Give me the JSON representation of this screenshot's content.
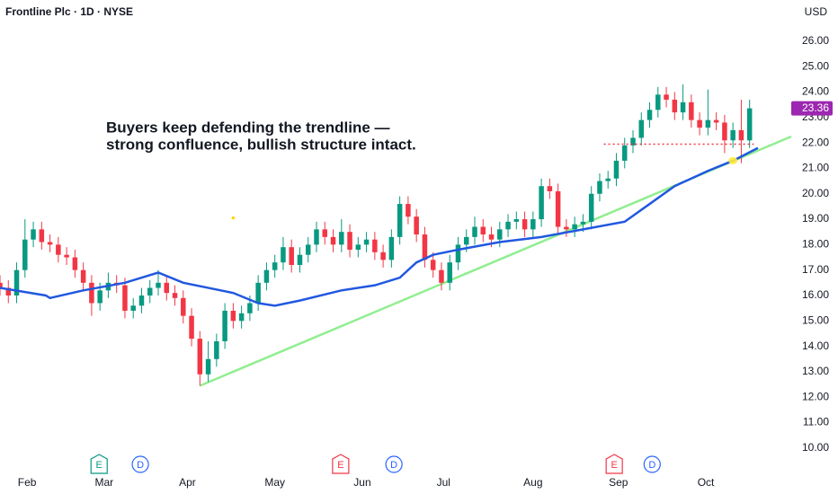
{
  "header": {
    "title": "Frontline Plc · 1D · NYSE",
    "currency": "USD"
  },
  "chart_data": {
    "type": "candlestick",
    "x": [
      0,
      2,
      4,
      6,
      8,
      10,
      12,
      14,
      16,
      18,
      20,
      22,
      24,
      26,
      28,
      30,
      32,
      34,
      36,
      38,
      40,
      42,
      44,
      46,
      48,
      50,
      52,
      54,
      56,
      58,
      60,
      62,
      64,
      66,
      68,
      70,
      72,
      74,
      76,
      78,
      80,
      82,
      84,
      86,
      88,
      90,
      92,
      94,
      96,
      98,
      100,
      102,
      104,
      106,
      108,
      110,
      112,
      114,
      116,
      118,
      120,
      122,
      124,
      126,
      128,
      130,
      132,
      134,
      136,
      138,
      140,
      142,
      144,
      146,
      148,
      150,
      152,
      154,
      156,
      158,
      160,
      162,
      164,
      166,
      168,
      170,
      172,
      174,
      176,
      178,
      180
    ],
    "open": [
      16.5,
      16.3,
      16.0,
      17.0,
      18.2,
      18.6,
      18.1,
      18.0,
      17.6,
      17.5,
      17.0,
      16.5,
      15.7,
      16.2,
      16.5,
      16.4,
      15.4,
      15.6,
      16.0,
      16.3,
      16.5,
      16.1,
      15.9,
      15.2,
      14.3,
      12.9,
      13.5,
      14.2,
      15.4,
      15.0,
      15.3,
      15.7,
      16.5,
      17.0,
      17.3,
      17.9,
      17.2,
      17.6,
      18.0,
      18.6,
      18.3,
      18.0,
      18.5,
      17.8,
      18.0,
      18.2,
      17.7,
      17.4,
      18.3,
      19.6,
      19.1,
      18.4,
      17.4,
      17.0,
      16.5,
      17.3,
      18.0,
      18.3,
      18.7,
      18.4,
      18.2,
      18.6,
      18.9,
      19.0,
      18.6,
      19.0,
      20.3,
      20.1,
      18.7,
      18.6,
      18.8,
      18.9,
      20.0,
      20.5,
      20.6,
      21.3,
      21.9,
      22.2,
      22.9,
      23.3,
      23.9,
      23.7,
      23.2,
      23.6,
      22.9,
      22.6,
      22.9,
      22.8,
      22.1,
      22.5,
      22.1
    ],
    "high": [
      16.8,
      16.6,
      17.3,
      19.0,
      18.9,
      18.9,
      18.4,
      18.3,
      17.9,
      17.8,
      17.3,
      16.8,
      16.5,
      16.9,
      16.8,
      16.7,
      15.9,
      16.3,
      16.6,
      17.0,
      16.8,
      16.4,
      16.2,
      15.5,
      14.6,
      14.2,
      14.5,
      15.7,
      15.7,
      15.6,
      16.0,
      16.8,
      17.3,
      17.6,
      18.3,
      18.2,
      17.9,
      18.3,
      18.9,
      18.9,
      18.6,
      19.0,
      18.8,
      18.3,
      18.5,
      18.5,
      18.0,
      18.6,
      19.9,
      19.9,
      19.4,
      18.7,
      17.7,
      17.3,
      17.6,
      18.3,
      18.6,
      19.1,
      19.0,
      18.7,
      18.9,
      19.2,
      19.3,
      19.3,
      19.3,
      20.6,
      20.6,
      20.4,
      19.0,
      19.1,
      19.2,
      20.3,
      20.8,
      20.9,
      21.6,
      22.2,
      22.5,
      23.2,
      23.6,
      24.2,
      24.2,
      24.0,
      24.3,
      23.9,
      23.2,
      24.1,
      23.2,
      23.1,
      22.8,
      23.7,
      23.7
    ],
    "low": [
      16.0,
      15.7,
      15.7,
      16.7,
      17.9,
      17.8,
      17.7,
      17.3,
      17.2,
      16.7,
      16.2,
      15.2,
      15.4,
      15.9,
      16.1,
      15.1,
      15.1,
      15.3,
      15.7,
      16.0,
      15.8,
      15.6,
      14.9,
      14.0,
      12.45,
      12.6,
      13.2,
      13.9,
      14.7,
      14.7,
      15.0,
      15.4,
      16.2,
      16.7,
      17.0,
      16.9,
      16.9,
      17.3,
      17.7,
      18.0,
      17.7,
      17.7,
      17.5,
      17.5,
      17.7,
      17.4,
      17.1,
      17.1,
      18.0,
      18.8,
      18.1,
      17.1,
      16.7,
      16.2,
      16.2,
      17.0,
      17.7,
      18.0,
      18.1,
      17.9,
      17.9,
      18.3,
      18.6,
      18.3,
      18.3,
      18.7,
      19.8,
      18.4,
      18.3,
      18.3,
      18.5,
      18.6,
      19.7,
      20.2,
      20.3,
      21.0,
      21.6,
      21.9,
      22.6,
      23.0,
      23.4,
      22.9,
      22.9,
      22.6,
      22.3,
      22.3,
      22.5,
      21.6,
      21.8,
      21.2,
      21.8
    ],
    "close": [
      16.3,
      16.0,
      17.0,
      18.2,
      18.6,
      18.1,
      18.0,
      17.6,
      17.5,
      17.0,
      16.5,
      15.7,
      16.2,
      16.5,
      16.4,
      15.4,
      15.6,
      16.0,
      16.3,
      16.5,
      16.1,
      15.9,
      15.2,
      14.3,
      12.9,
      13.5,
      14.2,
      15.4,
      15.0,
      15.3,
      15.7,
      16.5,
      17.0,
      17.3,
      17.9,
      17.2,
      17.6,
      18.0,
      18.6,
      18.3,
      18.0,
      18.5,
      17.8,
      18.0,
      18.2,
      17.7,
      17.4,
      18.3,
      19.6,
      19.1,
      18.4,
      17.4,
      17.0,
      16.5,
      17.3,
      18.0,
      18.3,
      18.7,
      18.4,
      18.2,
      18.6,
      18.9,
      19.0,
      18.6,
      19.0,
      20.3,
      20.1,
      18.7,
      18.6,
      18.8,
      18.9,
      20.0,
      20.5,
      20.6,
      21.3,
      21.9,
      22.2,
      22.9,
      23.3,
      23.9,
      23.7,
      23.2,
      23.6,
      22.9,
      22.6,
      22.9,
      22.8,
      22.1,
      22.5,
      22.1,
      23.36
    ],
    "up_color": "#089981",
    "down_color": "#f23645",
    "price_label_color": "#9c27b0",
    "xlim": [
      0,
      190
    ],
    "xticks": [
      {
        "value": 6.5,
        "label": "Feb"
      },
      {
        "value": 25,
        "label": "Mar"
      },
      {
        "value": 45,
        "label": "Apr"
      },
      {
        "value": 66,
        "label": "May"
      },
      {
        "value": 87,
        "label": "Jun"
      },
      {
        "value": 106.5,
        "label": "Jul"
      },
      {
        "value": 128,
        "label": "Aug"
      },
      {
        "value": 148.5,
        "label": "Sep"
      },
      {
        "value": 169.5,
        "label": "Oct"
      }
    ],
    "ylim": [
      8.9,
      27.62
    ],
    "yticks": [
      {
        "value": 10,
        "label": "10.00"
      },
      {
        "value": 11,
        "label": "11.00"
      },
      {
        "value": 12,
        "label": "12.00"
      },
      {
        "value": 13,
        "label": "13.00"
      },
      {
        "value": 14,
        "label": "14.00"
      },
      {
        "value": 15,
        "label": "15.00"
      },
      {
        "value": 16,
        "label": "16.00"
      },
      {
        "value": 17,
        "label": "17.00"
      },
      {
        "value": 18,
        "label": "18.00"
      },
      {
        "value": 19,
        "label": "19.00"
      },
      {
        "value": 20,
        "label": "20.00"
      },
      {
        "value": 21,
        "label": "21.00"
      },
      {
        "value": 22,
        "label": "22.00"
      },
      {
        "value": 23,
        "label": "23.00"
      },
      {
        "value": 24,
        "label": "24.00"
      },
      {
        "value": 25,
        "label": "25.00"
      },
      {
        "value": 26,
        "label": "26.00"
      }
    ],
    "grid": false,
    "moving_average": {
      "color": "#2158e0",
      "x": [
        0,
        11,
        12,
        20,
        30,
        36,
        38,
        44,
        56,
        62,
        66,
        72,
        82,
        90,
        96,
        100,
        104,
        110,
        120,
        130,
        140,
        150,
        156,
        162,
        170,
        176,
        182
      ],
      "values": [
        16.3,
        16.0,
        15.9,
        16.2,
        16.5,
        16.8,
        16.9,
        16.5,
        16.1,
        15.7,
        15.6,
        15.8,
        16.2,
        16.4,
        16.7,
        17.3,
        17.6,
        17.8,
        18.1,
        18.3,
        18.6,
        18.9,
        19.6,
        20.3,
        20.9,
        21.3,
        21.8
      ]
    },
    "trendline": {
      "color": "#90ee90",
      "x": [
        48,
        190
      ],
      "values": [
        12.45,
        22.25
      ]
    },
    "level": {
      "color": "#f23645",
      "x": [
        145,
        181
      ],
      "value": 21.95
    },
    "highlight": {
      "color": "#ffeb3b",
      "x": 176,
      "value": 21.3
    },
    "marker_dot": {
      "color": "#ffd600",
      "x": 56,
      "value": 19.05
    },
    "annotation": [
      "Buyers keep defending the trendline —",
      "strong confluence, bullish structure intact."
    ],
    "events": [
      {
        "label": "E",
        "x": 23.8,
        "color": "#089981"
      },
      {
        "label": "D",
        "x": 33.7,
        "color": "#2962ff"
      },
      {
        "label": "E",
        "x": 81.8,
        "color": "#f23645"
      },
      {
        "label": "D",
        "x": 94.6,
        "color": "#2962ff"
      },
      {
        "label": "E",
        "x": 147.5,
        "color": "#f23645"
      },
      {
        "label": "D",
        "x": 156.6,
        "color": "#2962ff"
      }
    ]
  }
}
